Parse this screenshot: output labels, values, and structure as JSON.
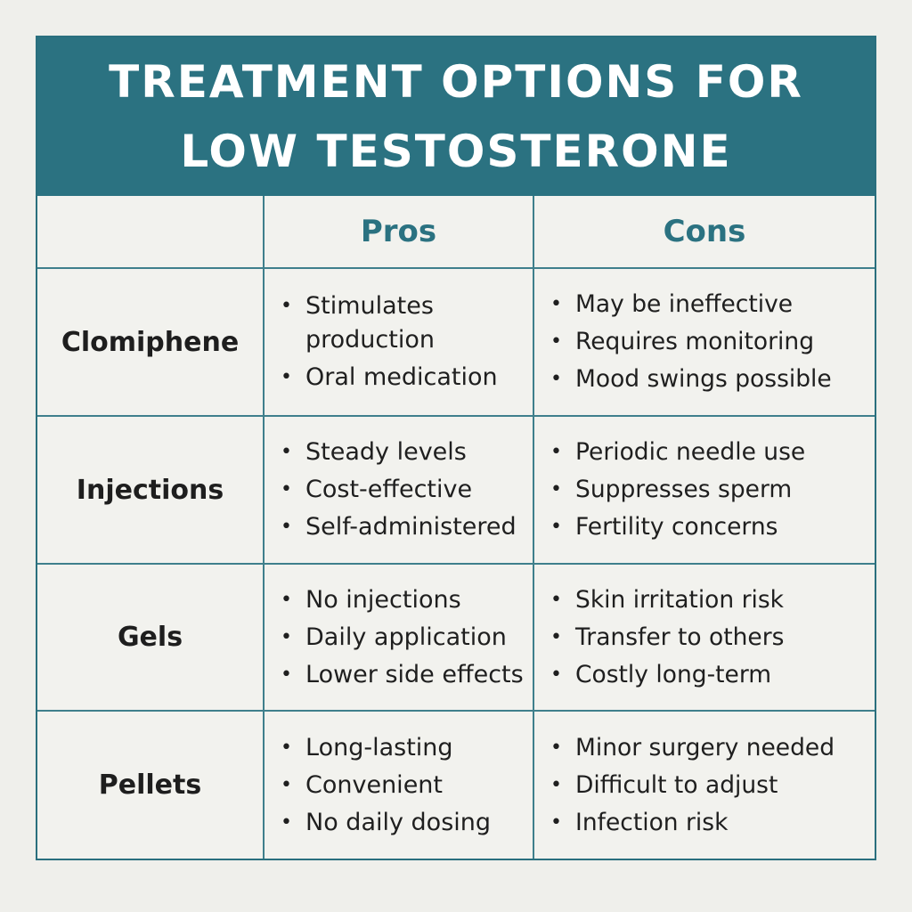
{
  "title": {
    "line1": "TREATMENT OPTIONS FOR",
    "line2": "LOW TESTOSTERONE"
  },
  "table": {
    "headers": [
      "",
      "Pros",
      "Cons"
    ],
    "rows": [
      {
        "name": "Clomiphene",
        "pros": [
          "Stimulates production",
          "Oral medication"
        ],
        "cons": [
          "May be ineffective",
          "Requires monitoring",
          "Mood swings possible"
        ]
      },
      {
        "name": "Injections",
        "pros": [
          "Steady levels",
          "Cost-effective",
          "Self-administered"
        ],
        "cons": [
          "Periodic needle use",
          "Suppresses sperm",
          "Fertility concerns"
        ]
      },
      {
        "name": "Gels",
        "pros": [
          "No injections",
          "Daily application",
          "Lower side effects"
        ],
        "cons": [
          "Skin irritation risk",
          "Transfer to others",
          "Costly long-term"
        ]
      },
      {
        "name": "Pellets",
        "pros": [
          "Long-lasting",
          "Convenient",
          "No daily dosing"
        ],
        "cons": [
          "Minor surgery needed",
          "Difficult to adjust",
          "Infection risk"
        ]
      }
    ]
  },
  "colors": {
    "accent": "#2b7281",
    "background": "#f2f2ee",
    "text": "#1f1f1f"
  },
  "icons": {
    "bullet": "bullet-dot-icon"
  }
}
